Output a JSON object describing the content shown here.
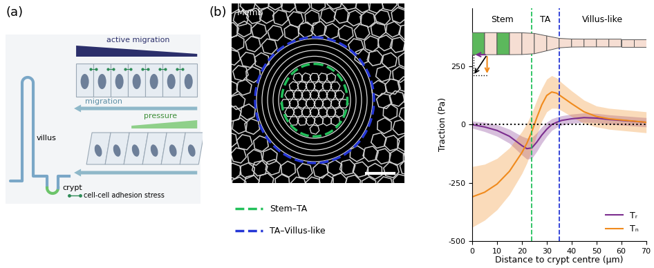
{
  "panel_labels": [
    "(a)",
    "(b)"
  ],
  "diagram": {
    "active_migration": "active migration",
    "migration": "migration",
    "pressure": "pressure",
    "villus": "villus",
    "crypt": "crypt",
    "adhesion": "cell-cell adhesion stress"
  },
  "image": {
    "channel_label": "Memb",
    "boundaries": [
      {
        "label": "Stem–TA",
        "color": "#22c05a"
      },
      {
        "label": "TA–Villus-like",
        "color": "#2436d6"
      }
    ]
  },
  "chart_data": {
    "type": "line",
    "x_label": "Distance to crypt centre (μm)",
    "y_label": "Traction (Pa)",
    "regions": [
      "Stem",
      "TA",
      "Villus-like"
    ],
    "boundaries": {
      "x": [
        24,
        35
      ],
      "colors": [
        "#22c05a",
        "#2436d6"
      ]
    },
    "x": [
      0,
      5,
      10,
      15,
      20,
      22,
      24,
      26,
      28,
      30,
      32,
      34,
      36,
      40,
      45,
      50,
      55,
      60,
      65,
      70
    ],
    "series": [
      {
        "name": "Tᵣ",
        "color": "#7b2d8e",
        "values": [
          0,
          -10,
          -25,
          -50,
          -90,
          -103,
          -100,
          -75,
          -45,
          -20,
          0,
          10,
          18,
          25,
          30,
          28,
          22,
          18,
          14,
          10
        ],
        "lower": [
          -15,
          -30,
          -50,
          -80,
          -130,
          -148,
          -145,
          -115,
          -80,
          -50,
          -25,
          -12,
          -2,
          5,
          10,
          8,
          2,
          -2,
          -6,
          -10
        ],
        "upper": [
          15,
          10,
          0,
          -20,
          -50,
          -58,
          -55,
          -35,
          -10,
          10,
          25,
          32,
          38,
          45,
          50,
          48,
          42,
          38,
          34,
          30
        ]
      },
      {
        "name": "Tₙ",
        "color": "#f08a1c",
        "values": [
          -310,
          -290,
          -255,
          -200,
          -120,
          -80,
          -30,
          30,
          85,
          125,
          140,
          135,
          120,
          90,
          55,
          35,
          25,
          20,
          15,
          10
        ],
        "lower": [
          -440,
          -410,
          -365,
          -300,
          -210,
          -165,
          -110,
          -45,
          15,
          55,
          70,
          70,
          60,
          35,
          5,
          -10,
          -20,
          -25,
          -30,
          -35
        ],
        "upper": [
          -180,
          -170,
          -145,
          -100,
          -30,
          5,
          50,
          105,
          155,
          195,
          210,
          200,
          180,
          145,
          105,
          80,
          70,
          65,
          60,
          55
        ]
      }
    ],
    "xlim": [
      0,
      70
    ],
    "xticks": [
      0,
      10,
      20,
      30,
      40,
      50,
      60,
      70
    ],
    "ylim": [
      -500,
      500
    ],
    "yticks": [
      -500,
      -250,
      0,
      250
    ],
    "legend": "lower right"
  }
}
